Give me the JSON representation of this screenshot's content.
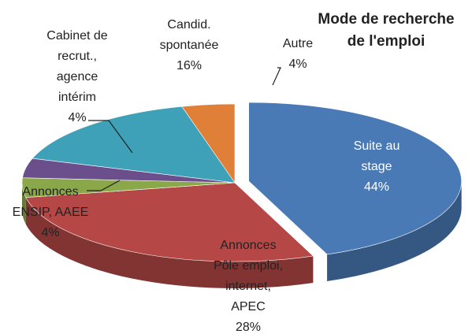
{
  "chart_data": {
    "type": "pie3d",
    "title": "Mode de recherche\nde l'emploi",
    "categories": [
      "Suite au\nstage",
      "Annonces\nPôle emploi,\ninternet,\nAPEC",
      "Annonces\nENSIP, AAEE",
      "Cabinet de\nrecrut.,\nagence\nintérim",
      "Candid.\nspontanée",
      "Autre"
    ],
    "values": [
      44,
      28,
      4,
      4,
      16,
      4
    ],
    "value_labels": [
      "44%",
      "28%",
      "4%",
      "4%",
      "16%",
      "4%"
    ],
    "colors": [
      "#4a7ab5",
      "#b54846",
      "#8aa84a",
      "#6b4f8c",
      "#3ea1b8",
      "#e07f38"
    ],
    "exploded": [
      0
    ]
  }
}
